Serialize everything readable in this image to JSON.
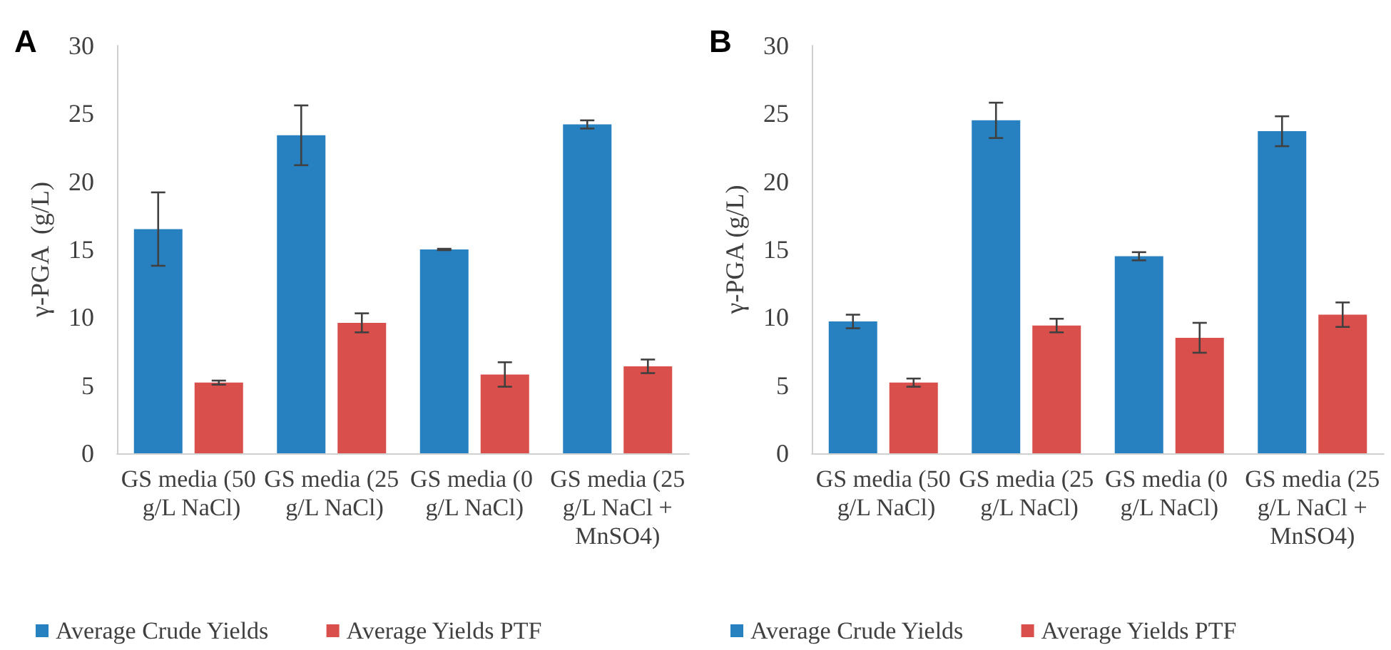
{
  "chart_data": [
    {
      "type": "bar",
      "annotations": [
        "A"
      ],
      "ylabel": "γ-PGA  (g/L)",
      "categories": [
        "GS media (50 g/L NaCl)",
        "GS media (25 g/L NaCl)",
        "GS media (0 g/L NaCl)",
        "GS media (25 g/L NaCl + MnSO4)"
      ],
      "series": [
        {
          "name": "Average Crude Yields",
          "color": "#2780bf",
          "values": [
            16.5,
            23.4,
            15.0,
            24.2
          ],
          "errors": [
            2.7,
            2.2,
            0.05,
            0.3
          ]
        },
        {
          "name": "Average Yields PTF",
          "color": "#d94f4b",
          "values": [
            5.2,
            9.6,
            5.8,
            6.4
          ],
          "errors": [
            0.15,
            0.7,
            0.9,
            0.5
          ]
        }
      ],
      "ylim": [
        0,
        30
      ],
      "yticks": [
        0,
        5,
        10,
        15,
        20,
        25,
        30
      ],
      "grid": false,
      "legend": "bottom"
    },
    {
      "type": "bar",
      "annotations": [
        "B"
      ],
      "ylabel": "γ-PGA (g/L)",
      "categories": [
        "GS media (50 g/L NaCl)",
        "GS media (25 g/L NaCl)",
        "GS media (0 g/L NaCl)",
        "GS media (25 g/L NaCl + MnSO4)"
      ],
      "series": [
        {
          "name": "Average Crude Yields",
          "color": "#2780bf",
          "values": [
            9.7,
            24.5,
            14.5,
            23.7
          ],
          "errors": [
            0.5,
            1.3,
            0.3,
            1.1
          ]
        },
        {
          "name": "Average Yields PTF",
          "color": "#d94f4b",
          "values": [
            5.2,
            9.4,
            8.5,
            10.2
          ],
          "errors": [
            0.3,
            0.5,
            1.1,
            0.9
          ]
        }
      ],
      "ylim": [
        0,
        30
      ],
      "yticks": [
        0,
        5,
        10,
        15,
        20,
        25,
        30
      ],
      "grid": false,
      "legend": "bottom"
    }
  ]
}
